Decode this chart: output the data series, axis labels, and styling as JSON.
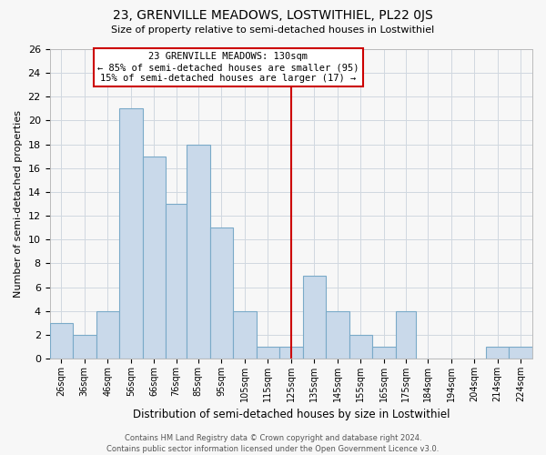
{
  "title": "23, GRENVILLE MEADOWS, LOSTWITHIEL, PL22 0JS",
  "subtitle": "Size of property relative to semi-detached houses in Lostwithiel",
  "xlabel": "Distribution of semi-detached houses by size in Lostwithiel",
  "ylabel": "Number of semi-detached properties",
  "bin_labels": [
    "26sqm",
    "36sqm",
    "46sqm",
    "56sqm",
    "66sqm",
    "76sqm",
    "85sqm",
    "95sqm",
    "105sqm",
    "115sqm",
    "125sqm",
    "135sqm",
    "145sqm",
    "155sqm",
    "165sqm",
    "175sqm",
    "184sqm",
    "194sqm",
    "204sqm",
    "214sqm",
    "224sqm"
  ],
  "bin_edges": [
    26,
    36,
    46,
    56,
    66,
    76,
    85,
    95,
    105,
    115,
    125,
    135,
    145,
    155,
    165,
    175,
    184,
    194,
    204,
    214,
    224,
    234
  ],
  "counts": [
    3,
    2,
    4,
    21,
    17,
    13,
    18,
    11,
    4,
    1,
    1,
    7,
    4,
    2,
    1,
    4,
    0,
    0,
    0,
    1,
    1
  ],
  "bar_color": "#c9d9ea",
  "bar_edge_color": "#7aaac8",
  "grid_color": "#d0d8e0",
  "vline_x": 130,
  "vline_color": "#cc0000",
  "annotation_title": "23 GRENVILLE MEADOWS: 130sqm",
  "annotation_line1": "← 85% of semi-detached houses are smaller (95)",
  "annotation_line2": "15% of semi-detached houses are larger (17) →",
  "ylim": [
    0,
    26
  ],
  "yticks": [
    0,
    2,
    4,
    6,
    8,
    10,
    12,
    14,
    16,
    18,
    20,
    22,
    24,
    26
  ],
  "footer_line1": "Contains HM Land Registry data © Crown copyright and database right 2024.",
  "footer_line2": "Contains public sector information licensed under the Open Government Licence v3.0.",
  "bg_color": "#f7f7f7",
  "title_fontsize": 10,
  "subtitle_fontsize": 8
}
